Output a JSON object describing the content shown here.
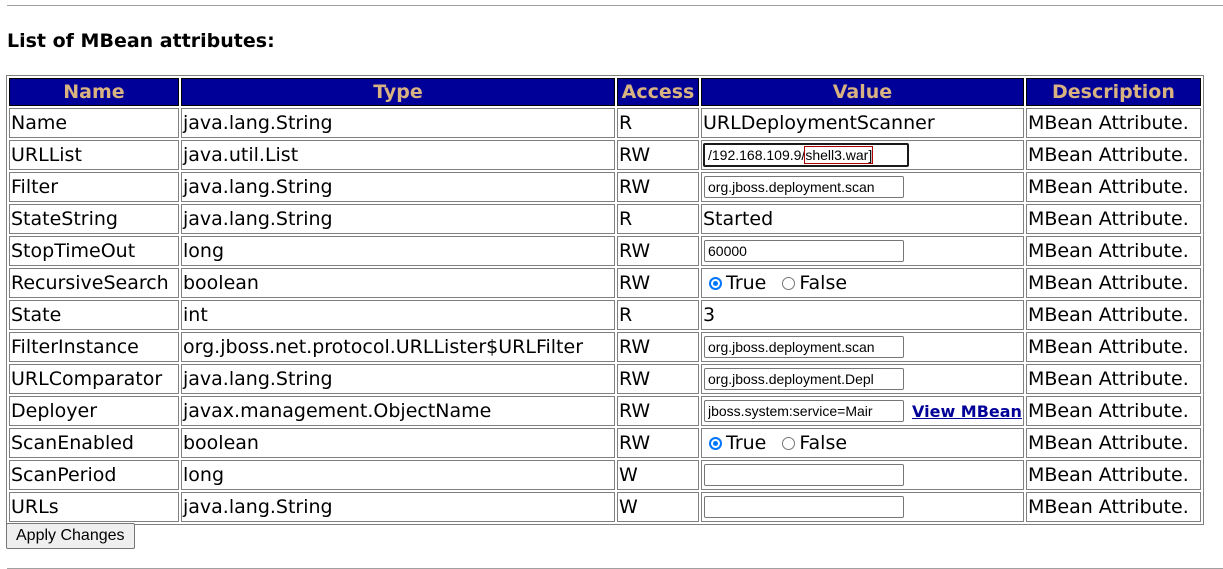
{
  "heading": "List of MBean attributes:",
  "columns": [
    "Name",
    "Type",
    "Access",
    "Value",
    "Description"
  ],
  "rows": [
    {
      "name": "Name",
      "type": "java.lang.String",
      "access": "R",
      "kind": "text",
      "value": "URLDeploymentScanner",
      "description": "MBean Attribute."
    },
    {
      "name": "URLList",
      "type": "java.util.List",
      "access": "RW",
      "kind": "input",
      "value": "/192.168.109.9/shell3.war]",
      "value_prefix": "/192.168.109.9/",
      "value_selected": "shell3.war]",
      "focused": true,
      "description": "MBean Attribute."
    },
    {
      "name": "Filter",
      "type": "java.lang.String",
      "access": "RW",
      "kind": "input",
      "value": "org.jboss.deployment.scan",
      "description": "MBean Attribute."
    },
    {
      "name": "StateString",
      "type": "java.lang.String",
      "access": "R",
      "kind": "text",
      "value": "Started",
      "description": "MBean Attribute."
    },
    {
      "name": "StopTimeOut",
      "type": "long",
      "access": "RW",
      "kind": "input",
      "value": "60000",
      "description": "MBean Attribute."
    },
    {
      "name": "RecursiveSearch",
      "type": "boolean",
      "access": "RW",
      "kind": "radio",
      "true_label": "True",
      "false_label": "False",
      "selected": "True",
      "description": "MBean Attribute."
    },
    {
      "name": "State",
      "type": "int",
      "access": "R",
      "kind": "text",
      "value": "3",
      "description": "MBean Attribute."
    },
    {
      "name": "FilterInstance",
      "type": "org.jboss.net.protocol.URLLister$URLFilter",
      "access": "RW",
      "kind": "input",
      "value": "org.jboss.deployment.scan",
      "description": "MBean Attribute."
    },
    {
      "name": "URLComparator",
      "type": "java.lang.String",
      "access": "RW",
      "kind": "input",
      "value": "org.jboss.deployment.Depl",
      "description": "MBean Attribute."
    },
    {
      "name": "Deployer",
      "type": "javax.management.ObjectName",
      "access": "RW",
      "kind": "input-link",
      "value": "jboss.system:service=Mair",
      "link_label": "View MBean",
      "description": "MBean Attribute."
    },
    {
      "name": "ScanEnabled",
      "type": "boolean",
      "access": "RW",
      "kind": "radio",
      "true_label": "True",
      "false_label": "False",
      "selected": "True",
      "description": "MBean Attribute."
    },
    {
      "name": "ScanPeriod",
      "type": "long",
      "access": "W",
      "kind": "input",
      "value": "",
      "description": "MBean Attribute."
    },
    {
      "name": "URLs",
      "type": "java.lang.String",
      "access": "W",
      "kind": "input",
      "value": "",
      "description": "MBean Attribute."
    }
  ],
  "apply_button": "Apply Changes",
  "colors": {
    "header_bg": "#000099",
    "header_text": "#d8b280",
    "link": "#000099",
    "radio_checked": "#0075ff"
  }
}
